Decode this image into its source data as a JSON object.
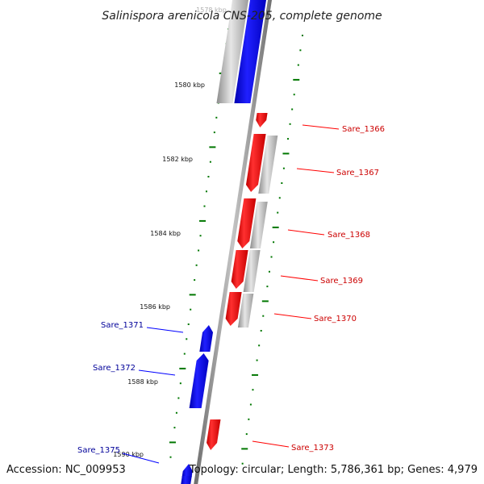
{
  "title": "Salinispora arenicola CNS-205, complete genome",
  "accession": "Accession: NC_009953",
  "topology": "Topology: circular; Length: 5,786,361 bp; Genes: 4,979",
  "partial_top_label": "1578 kbp",
  "kbp_labels": [
    "1580 kbp",
    "1582 kbp",
    "1584 kbp",
    "1586 kbp",
    "1588 kbp",
    "1590 kbp"
  ],
  "genes_forward": [
    "Sare_1366",
    "Sare_1367",
    "Sare_1368",
    "Sare_1369",
    "Sare_1370",
    "Sare_1373"
  ],
  "genes_reverse": [
    "Sare_1371",
    "Sare_1372",
    "Sare_1375"
  ],
  "colors": {
    "forward": "#ff0000",
    "reverse": "#0000ff",
    "cds": "#b4b4b4",
    "backbone": "#808080",
    "ticks": "#007700",
    "label_forward": "#cc0000",
    "label_reverse": "#000099"
  }
}
